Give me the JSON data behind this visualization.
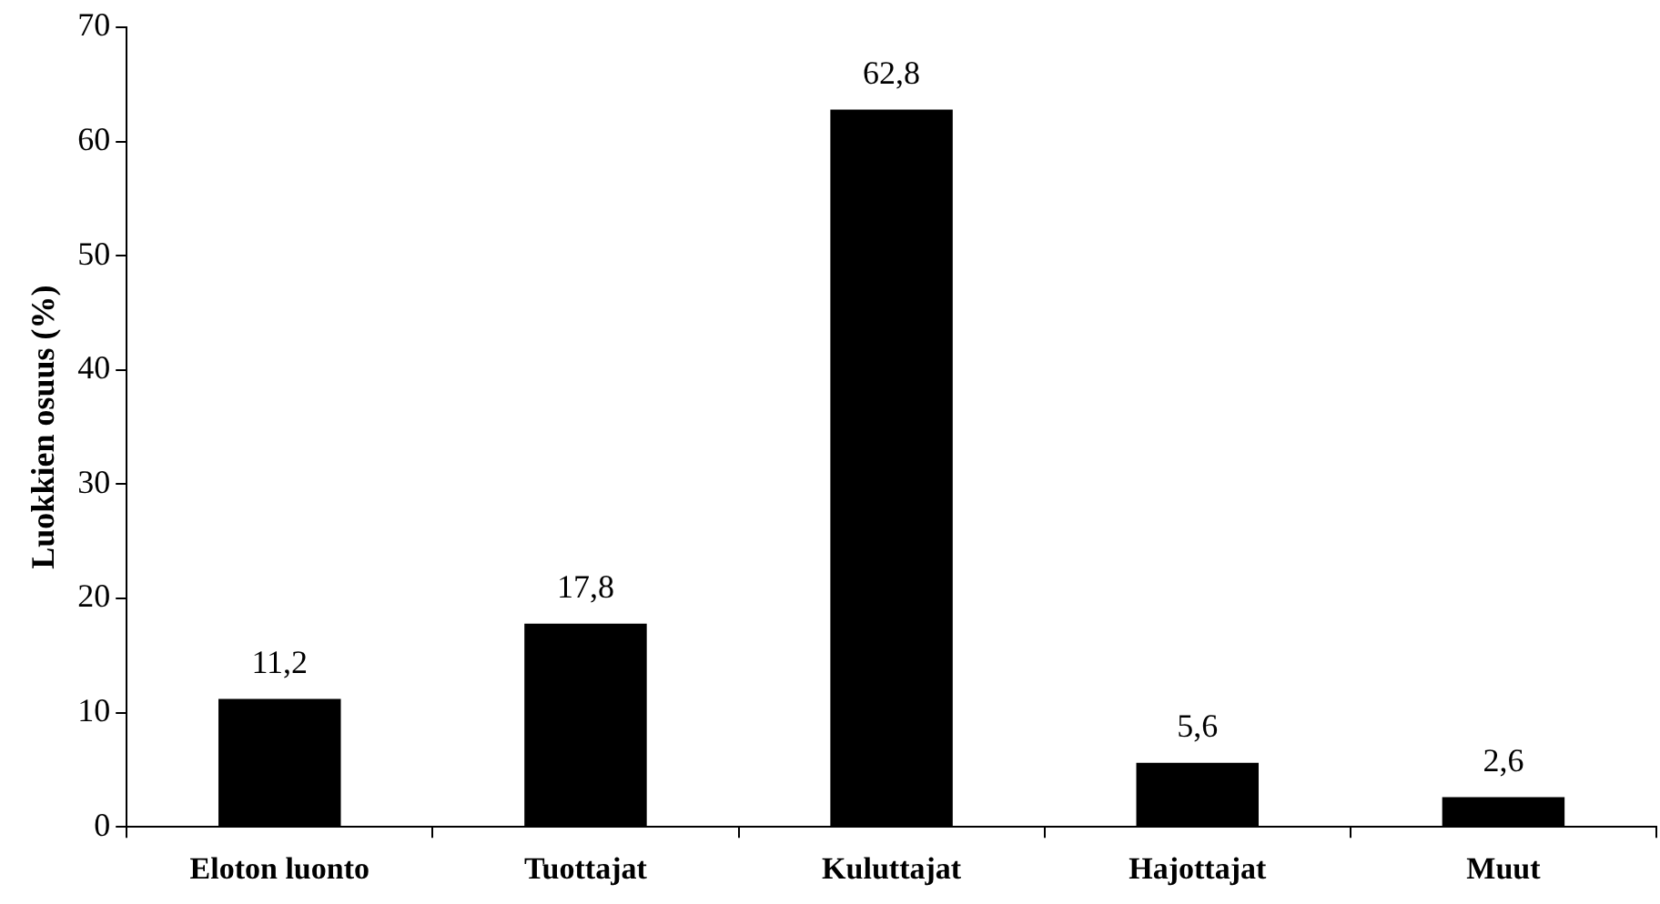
{
  "chart_data": {
    "type": "bar",
    "ylabel": "Luokkien osuus (%)",
    "categories": [
      "Eloton luonto",
      "Tuottajat",
      "Kuluttajat",
      "Hajottajat",
      "Muut"
    ],
    "values": [
      11.2,
      17.8,
      62.8,
      5.6,
      2.6
    ],
    "value_labels": [
      "11,2",
      "17,8",
      "62,8",
      "5,6",
      "2,6"
    ],
    "color": "#000000",
    "ylim": [
      0,
      70
    ],
    "yticks": [
      0,
      10,
      20,
      30,
      40,
      50,
      60,
      70
    ],
    "grid": false,
    "legend": false
  }
}
